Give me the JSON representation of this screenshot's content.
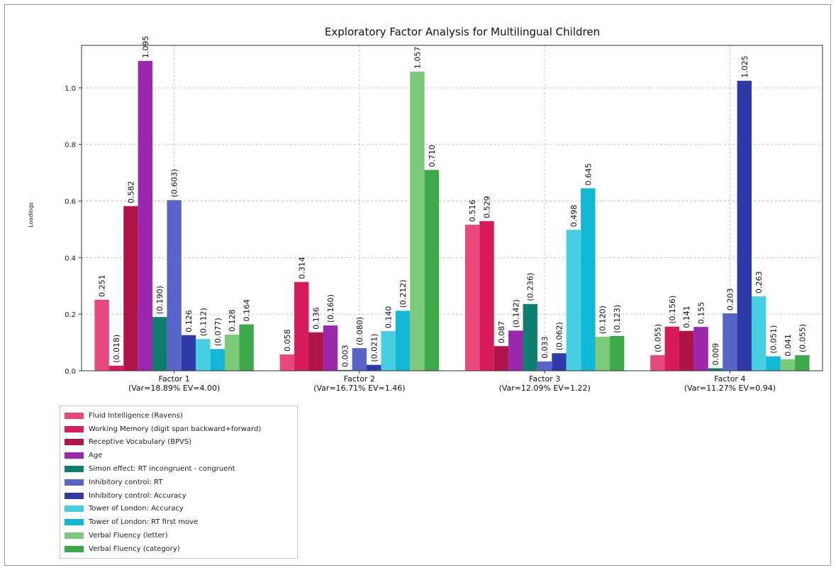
{
  "chart_data": {
    "type": "bar",
    "title": "Exploratory Factor Analysis for Multilingual Children",
    "ylabel": "Loadings",
    "xlabel": "",
    "ylim": [
      0,
      1.15
    ],
    "yticks": [
      "0.0",
      "0.2",
      "0.4",
      "0.6",
      "0.8",
      "1.0"
    ],
    "grid": true,
    "legend_position": "below-left",
    "categories": [
      "Factor 1\n(Var=18.89% EV=4.00)",
      "Factor 2\n(Var=16.71% EV=1.46)",
      "Factor 3\n(Var=12.09% EV=1.22)",
      "Factor 4\n(Var=11.27% EV=0.94)"
    ],
    "series": [
      {
        "name": "Fluid Intelligence (Ravens)",
        "color": "#e8497a",
        "values": [
          0.251,
          0.058,
          0.516,
          0.055
        ],
        "labels": [
          "0.251",
          "0.058",
          "0.516",
          "(0.055)"
        ]
      },
      {
        "name": "Working Memory (digit span backward+forward)",
        "color": "#d81b5a",
        "values": [
          0.018,
          0.314,
          0.529,
          0.156
        ],
        "labels": [
          "(0.018)",
          "0.314",
          "0.529",
          "(0.156)"
        ]
      },
      {
        "name": "Receptive Vocabulary (BPVS)",
        "color": "#b01446",
        "values": [
          0.582,
          0.136,
          0.087,
          0.141
        ],
        "labels": [
          "0.582",
          "0.136",
          "0.087",
          "0.141"
        ]
      },
      {
        "name": "Age",
        "color": "#9b27af",
        "values": [
          1.095,
          0.16,
          0.142,
          0.155
        ],
        "labels": [
          "1.095",
          "(0.160)",
          "(0.142)",
          "0.155"
        ]
      },
      {
        "name": "Simon effect: RT incongruent - congruent",
        "color": "#0e7f6e",
        "values": [
          0.19,
          0.003,
          0.236,
          0.009
        ],
        "labels": [
          "(0.190)",
          "0.003",
          "(0.236)",
          "0.009"
        ]
      },
      {
        "name": "Inhibitory control: RT",
        "color": "#5865c7",
        "values": [
          0.603,
          0.08,
          0.033,
          0.203
        ],
        "labels": [
          "(0.603)",
          "(0.080)",
          "0.033",
          "0.203"
        ]
      },
      {
        "name": "Inhibitory control: Accuracy",
        "color": "#2f3aa8",
        "values": [
          0.126,
          0.021,
          0.062,
          1.025
        ],
        "labels": [
          "0.126",
          "(0.021)",
          "(0.062)",
          "1.025"
        ]
      },
      {
        "name": "Tower of London: Accuracy",
        "color": "#45cfe0",
        "values": [
          0.112,
          0.14,
          0.498,
          0.263
        ],
        "labels": [
          "(0.112)",
          "0.140",
          "0.498",
          "0.263"
        ]
      },
      {
        "name": "Tower of London: RT first move",
        "color": "#10b8d6",
        "values": [
          0.077,
          0.212,
          0.645,
          0.051
        ],
        "labels": [
          "(0.077)",
          "(0.212)",
          "0.645",
          "(0.051)"
        ]
      },
      {
        "name": "Verbal Fluency (letter)",
        "color": "#7cc97a",
        "values": [
          0.128,
          1.057,
          0.12,
          0.041
        ],
        "labels": [
          "0.128",
          "1.057",
          "(0.120)",
          "0.041"
        ]
      },
      {
        "name": "Verbal Fluency (category)",
        "color": "#3daa4a",
        "values": [
          0.164,
          0.71,
          0.123,
          0.055
        ],
        "labels": [
          "0.164",
          "0.710",
          "(0.123)",
          "(0.055)"
        ]
      }
    ]
  }
}
